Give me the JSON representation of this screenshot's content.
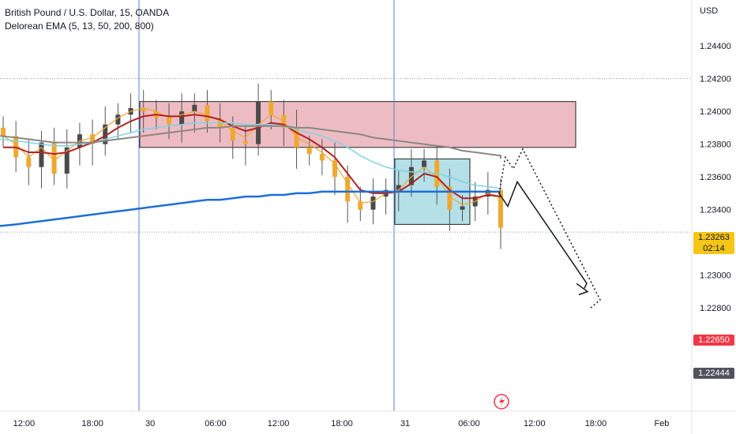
{
  "header": {
    "symbol_title": "British Pound / U.S. Dollar, 15, OANDA",
    "indicator_title": "Delorean EMA (5, 13, 50, 200, 800)"
  },
  "axis": {
    "currency": "USD"
  },
  "badges": {
    "current_price": "1.23263",
    "countdown": "02:14",
    "red_level": "1.22650",
    "grey_level": "1.22444"
  },
  "colors": {
    "background": "#ffffff",
    "up_candle": "#4a4a4a",
    "ema5": "#f0a830",
    "ema13": "#b22222",
    "ema50": "#7fd3e3",
    "ema200": "#8d8683",
    "ema800": "#1e6fd9",
    "supply_zone": "#e7a5af",
    "consolidation_zone": "#a8dbe3",
    "current_price_badge": "#f5c518",
    "red_level_badge": "#f23645",
    "grey_level_badge": "#50535e",
    "session_line": "#5b7fd0"
  },
  "chart_data": {
    "type": "line",
    "title": "British Pound / U.S. Dollar, 15, OANDA",
    "ylabel": "USD",
    "x_ticks": [
      "12:00",
      "18:00",
      "30",
      "06:00",
      "12:00",
      "18:00",
      "31",
      "06:00",
      "12:00",
      "18:00",
      "Feb"
    ],
    "y_ticks": [
      "1.24400",
      "1.24200",
      "1.24000",
      "1.23800",
      "1.23600",
      "1.23400",
      "1.23200",
      "1.23000",
      "1.22800",
      "1.22600",
      "1.22400"
    ],
    "ylim": [
      1.2217,
      1.2468
    ],
    "grid": false,
    "series": [
      {
        "name": "5",
        "role": "ema5",
        "values": [
          1.2385,
          1.238,
          1.2372,
          1.2378,
          1.237,
          1.2376,
          1.2382,
          1.2384,
          1.239,
          1.2396,
          1.24,
          1.2402,
          1.24,
          1.2396,
          1.2398,
          1.24,
          1.2398,
          1.2394,
          1.2388,
          1.2384,
          1.2392,
          1.2398,
          1.2394,
          1.2384,
          1.238,
          1.2375,
          1.2368,
          1.2356,
          1.2344,
          1.2345,
          1.235,
          1.2352,
          1.236,
          1.2366,
          1.236,
          1.2348,
          1.2343,
          1.2345,
          1.235,
          1.2348
        ]
      },
      {
        "name": "13",
        "role": "ema13",
        "values": [
          1.2378,
          1.2378,
          1.2375,
          1.2375,
          1.2374,
          1.2375,
          1.2378,
          1.2381,
          1.2385,
          1.239,
          1.2394,
          1.2397,
          1.2398,
          1.2397,
          1.2397,
          1.2398,
          1.2397,
          1.2395,
          1.2391,
          1.2388,
          1.239,
          1.2393,
          1.2392,
          1.2387,
          1.2383,
          1.2378,
          1.2372,
          1.2362,
          1.2352,
          1.235,
          1.235,
          1.2351,
          1.2356,
          1.2362,
          1.236,
          1.2352,
          1.2347,
          1.2347,
          1.2349,
          1.2348
        ]
      },
      {
        "name": "50",
        "role": "ema50",
        "values": [
          1.2383,
          1.2382,
          1.2381,
          1.238,
          1.2379,
          1.2379,
          1.238,
          1.2381,
          1.2383,
          1.2385,
          1.2387,
          1.2389,
          1.239,
          1.2391,
          1.2392,
          1.2393,
          1.2393,
          1.2393,
          1.2393,
          1.2392,
          1.2392,
          1.2392,
          1.2391,
          1.2389,
          1.2387,
          1.2385,
          1.2382,
          1.2378,
          1.2373,
          1.2369,
          1.2366,
          1.2364,
          1.2363,
          1.2363,
          1.2362,
          1.236,
          1.2357,
          1.2355,
          1.2354,
          1.2353
        ]
      },
      {
        "name": "200",
        "role": "ema200",
        "values": [
          1.2385,
          1.2384,
          1.2383,
          1.2382,
          1.2381,
          1.2381,
          1.2381,
          1.2381,
          1.2382,
          1.2383,
          1.2384,
          1.2385,
          1.2386,
          1.2387,
          1.2388,
          1.2389,
          1.239,
          1.239,
          1.2391,
          1.2391,
          1.2391,
          1.2391,
          1.2391,
          1.239,
          1.239,
          1.2389,
          1.2388,
          1.2387,
          1.2386,
          1.2384,
          1.2383,
          1.2382,
          1.2381,
          1.238,
          1.2379,
          1.2378,
          1.2376,
          1.2375,
          1.2374,
          1.2373
        ]
      },
      {
        "name": "800",
        "role": "ema800",
        "values": [
          1.233,
          1.2331,
          1.2332,
          1.2333,
          1.2334,
          1.2335,
          1.2336,
          1.2337,
          1.2338,
          1.2339,
          1.234,
          1.2341,
          1.2342,
          1.2343,
          1.2344,
          1.2345,
          1.2346,
          1.2346,
          1.2347,
          1.2348,
          1.2348,
          1.2349,
          1.2349,
          1.235,
          1.235,
          1.2351,
          1.2351,
          1.2351,
          1.2351,
          1.2351,
          1.2351,
          1.2351,
          1.2351,
          1.2351,
          1.2351,
          1.2351,
          1.2351,
          1.2351,
          1.2351,
          1.2351
        ]
      }
    ],
    "candle_closes": [
      1.2385,
      1.2372,
      1.2366,
      1.2381,
      1.2362,
      1.2378,
      1.2386,
      1.238,
      1.2392,
      1.2398,
      1.2402,
      1.24,
      1.2396,
      1.2392,
      1.24,
      1.2404,
      1.2394,
      1.239,
      1.2382,
      1.238,
      1.2406,
      1.2398,
      1.239,
      1.2378,
      1.2374,
      1.237,
      1.236,
      1.2345,
      1.234,
      1.2348,
      1.2352,
      1.2355,
      1.2366,
      1.237,
      1.2354,
      1.234,
      1.2342,
      1.2348,
      1.2352,
      1.2329
    ],
    "zones": [
      {
        "name": "supply",
        "from": 1.2378,
        "to": 1.2406
      },
      {
        "name": "consolidation",
        "from": 1.2331,
        "to": 1.2371
      }
    ],
    "levels": [
      1.23263,
      1.2265,
      1.22444
    ],
    "projection_solid": [
      1.235,
      1.2342,
      1.2357,
      1.2295,
      1.2292
    ],
    "projection_dotted": [
      1.235,
      1.2372,
      1.2365,
      1.2377,
      1.2285,
      1.228
    ]
  }
}
